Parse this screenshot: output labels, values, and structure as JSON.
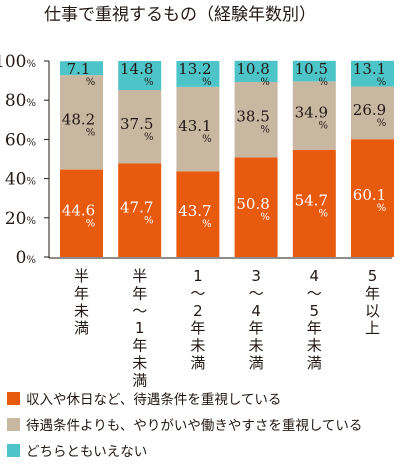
{
  "chart_data": {
    "type": "bar",
    "stacked": true,
    "title": "仕事で重視するもの（経験年数別）",
    "xlabel": "",
    "ylabel": "",
    "ylim": [
      0,
      100
    ],
    "y_ticks": [
      "0",
      "20",
      "40",
      "60",
      "80",
      "100"
    ],
    "y_unit": "%",
    "value_unit": "%",
    "grid": false,
    "legend_position": "bottom",
    "categories": [
      "半年未満",
      "半年〜1年未満",
      "1〜2年未満",
      "3〜4年未満",
      "4〜5年未満",
      "5年以上"
    ],
    "series": [
      {
        "name": "収入や休日など、待遇条件を重視している",
        "color": "#e85a0e",
        "label_color": "#ffffff",
        "values": [
          44.6,
          47.7,
          43.7,
          50.8,
          54.7,
          60.1
        ]
      },
      {
        "name": "待遇条件よりも、やりがいや働きやすさを重視している",
        "color": "#c8b8a2",
        "label_color": "#231815",
        "values": [
          48.2,
          37.5,
          43.1,
          38.5,
          34.9,
          26.9
        ]
      },
      {
        "name": "どちらともいえない",
        "color": "#4dc5c8",
        "label_color": "#231815",
        "values": [
          7.1,
          14.8,
          13.2,
          10.8,
          10.5,
          13.1
        ]
      }
    ]
  }
}
